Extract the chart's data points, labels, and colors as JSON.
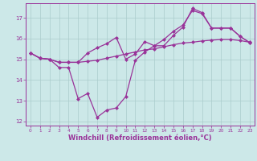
{
  "line1": {
    "x": [
      0,
      1,
      2,
      3,
      4,
      5,
      6,
      7,
      8,
      9,
      10,
      11,
      12,
      13,
      14,
      15,
      16,
      17,
      18,
      19,
      20,
      21,
      22,
      23
    ],
    "y": [
      15.3,
      15.05,
      15.0,
      14.85,
      14.85,
      14.85,
      14.9,
      14.95,
      15.05,
      15.15,
      15.25,
      15.35,
      15.45,
      15.5,
      15.6,
      15.7,
      15.78,
      15.82,
      15.88,
      15.92,
      15.95,
      15.95,
      15.9,
      15.82
    ]
  },
  "line2": {
    "x": [
      0,
      1,
      2,
      3,
      4,
      5,
      6,
      7,
      8,
      9,
      10,
      11,
      12,
      13,
      14,
      15,
      16,
      17,
      18,
      19,
      20,
      21,
      22,
      23
    ],
    "y": [
      15.3,
      15.05,
      15.0,
      14.85,
      14.85,
      14.85,
      15.3,
      15.55,
      15.75,
      16.05,
      15.0,
      15.25,
      15.85,
      15.65,
      15.95,
      16.35,
      16.65,
      17.35,
      17.2,
      16.5,
      16.5,
      16.5,
      16.1,
      15.8
    ]
  },
  "line3": {
    "x": [
      0,
      1,
      2,
      3,
      4,
      5,
      6,
      7,
      8,
      9,
      10,
      11,
      12,
      13,
      14,
      15,
      16,
      17,
      18,
      19,
      20,
      21,
      22,
      23
    ],
    "y": [
      15.3,
      15.05,
      15.0,
      14.6,
      14.6,
      13.1,
      13.35,
      12.2,
      12.55,
      12.65,
      13.2,
      14.95,
      15.35,
      15.65,
      15.65,
      16.15,
      16.55,
      17.45,
      17.25,
      16.5,
      16.5,
      16.5,
      16.1,
      15.8
    ]
  },
  "xlabel": "Windchill (Refroidissement éolien,°C)",
  "xlim": [
    -0.5,
    23.5
  ],
  "ylim": [
    11.8,
    17.7
  ],
  "yticks": [
    12,
    13,
    14,
    15,
    16,
    17
  ],
  "xticks": [
    0,
    1,
    2,
    3,
    4,
    5,
    6,
    7,
    8,
    9,
    10,
    11,
    12,
    13,
    14,
    15,
    16,
    17,
    18,
    19,
    20,
    21,
    22,
    23
  ],
  "bg_color": "#cce8e8",
  "line_color": "#993399",
  "grid_color": "#aacccc",
  "tick_color": "#993399",
  "label_color": "#993399",
  "spine_color": "#993399"
}
